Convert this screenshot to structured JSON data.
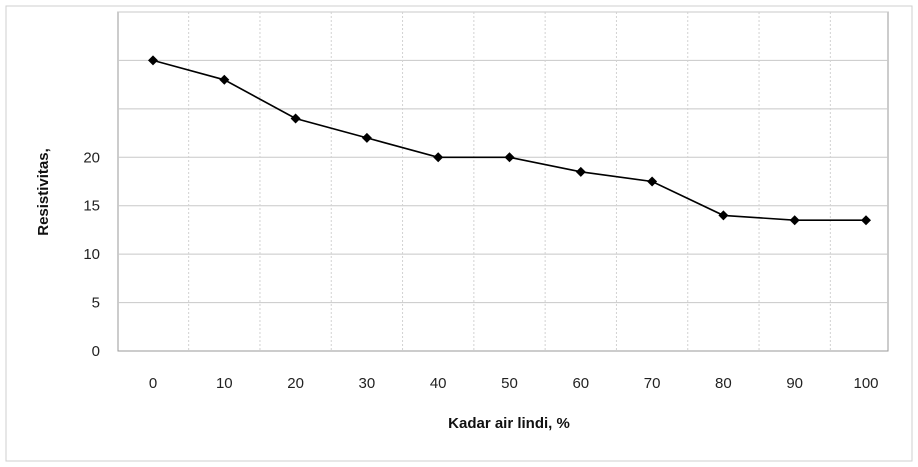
{
  "chart_data": {
    "type": "line",
    "title": "",
    "xlabel": "Kadar air lindi, %",
    "ylabel": "Resistivitas,",
    "x": [
      0,
      10,
      20,
      30,
      40,
      50,
      60,
      70,
      80,
      90,
      100
    ],
    "x_tick_labels": [
      "0",
      "10",
      "20",
      "30",
      "40",
      "50",
      "60",
      "70",
      "80",
      "90",
      "100"
    ],
    "series": [
      {
        "values": [
          30,
          28,
          24,
          22,
          20,
          20,
          18.5,
          17.5,
          14,
          13.5,
          13.5
        ],
        "color": "#000000",
        "marker": "diamond"
      }
    ],
    "y_tick_labels": [
      "0",
      "5",
      "10",
      "15",
      "20"
    ],
    "y_tick_values": [
      0,
      5,
      10,
      15,
      20
    ],
    "ylim": [
      0,
      35
    ],
    "y_gridlines": [
      5,
      10,
      15,
      20,
      25,
      30,
      35
    ],
    "xlim": [
      0,
      100
    ],
    "grid": true,
    "legend": "none"
  }
}
